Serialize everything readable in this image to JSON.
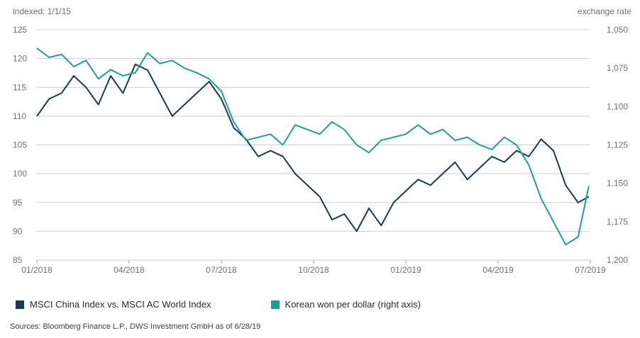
{
  "chart_data": {
    "type": "line",
    "left_axis_title": "indexed: 1/1/15",
    "right_axis_title": "exchange rate",
    "x_ticks": [
      "01/2018",
      "04/2018",
      "07/2018",
      "10/2018",
      "01/2019",
      "04/2019",
      "07/2019"
    ],
    "ylim_left": [
      85,
      125
    ],
    "yticks_left": [
      85,
      90,
      95,
      100,
      105,
      110,
      115,
      120,
      125
    ],
    "ylim_right": [
      1200,
      1050
    ],
    "yticks_right": [
      "1,050",
      "1,075",
      "1,100",
      "1,125",
      "1,150",
      "1,175",
      "1,200"
    ],
    "right_axis_inverted": true,
    "grid": "horizontal",
    "series": [
      {
        "name": "MSCI China Index vs. MSCI AC World Index",
        "axis": "left",
        "color": "#173a57",
        "x": [
          0,
          0.4,
          0.8,
          1.2,
          1.6,
          2.0,
          2.4,
          2.8,
          3.2,
          3.6,
          4.0,
          4.4,
          4.8,
          5.2,
          5.6,
          6.0,
          6.4,
          6.8,
          7.2,
          7.6,
          8.0,
          8.4,
          8.8,
          9.2,
          9.6,
          10.0,
          10.4,
          10.8,
          11.2,
          11.6,
          12.0,
          12.4,
          12.8,
          13.2,
          13.6,
          14.0,
          14.4,
          14.8,
          15.2,
          15.6,
          16.0,
          16.4,
          16.8,
          17.2,
          17.6,
          17.95
        ],
        "y": [
          110,
          113,
          114,
          117,
          115,
          112,
          117,
          114,
          119,
          118,
          114,
          110,
          112,
          114,
          116,
          113,
          108,
          106,
          103,
          104,
          103,
          100,
          98,
          96,
          92,
          93,
          90,
          94,
          91,
          95,
          97,
          99,
          98,
          100,
          102,
          99,
          101,
          103,
          102,
          104,
          103,
          106,
          104,
          98,
          95,
          96
        ]
      },
      {
        "name": "Korean won per dollar (right axis)",
        "axis": "right",
        "color": "#1f9d9a",
        "x": [
          0,
          0.4,
          0.8,
          1.2,
          1.6,
          2.0,
          2.4,
          2.8,
          3.2,
          3.6,
          4.0,
          4.4,
          4.8,
          5.2,
          5.6,
          6.0,
          6.4,
          6.8,
          7.2,
          7.6,
          8.0,
          8.4,
          8.8,
          9.2,
          9.6,
          10.0,
          10.4,
          10.8,
          11.2,
          11.6,
          12.0,
          12.4,
          12.8,
          13.2,
          13.6,
          14.0,
          14.4,
          14.8,
          15.2,
          15.6,
          16.0,
          16.4,
          16.8,
          17.2,
          17.6,
          17.95
        ],
        "y": [
          1062,
          1068,
          1066,
          1074,
          1070,
          1082,
          1076,
          1080,
          1078,
          1065,
          1072,
          1070,
          1075,
          1078,
          1082,
          1090,
          1110,
          1122,
          1120,
          1118,
          1125,
          1112,
          1115,
          1118,
          1110,
          1115,
          1125,
          1130,
          1122,
          1120,
          1118,
          1112,
          1118,
          1115,
          1122,
          1120,
          1125,
          1128,
          1120,
          1125,
          1138,
          1160,
          1175,
          1190,
          1185,
          1152
        ]
      }
    ]
  },
  "legend": {
    "china": "MSCI China Index vs. MSCI AC World Index",
    "krw": "Korean won per dollar (right axis)"
  },
  "source": "Sources: Bloomberg Finance L.P., DWS Investment GmbH as of 6/28/19"
}
